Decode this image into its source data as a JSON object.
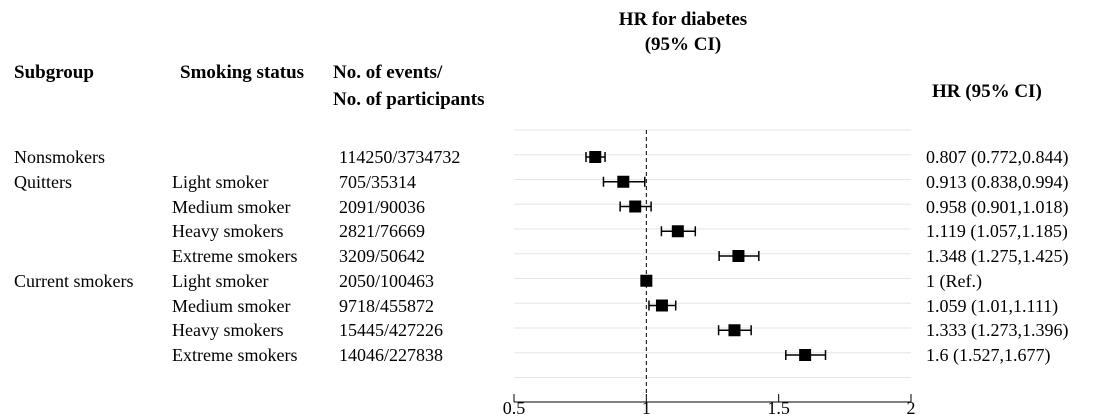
{
  "headers": {
    "subgroup": "Subgroup",
    "smoking_status": "Smoking status",
    "events_line1": "No. of events/",
    "events_line2": "No. of participants",
    "plot_title_line1": "HR for  diabetes",
    "plot_title_line2": "(95% CI)",
    "hr_ci": "HR (95% CI)"
  },
  "rows": [
    {
      "subgroup": "Nonsmokers",
      "status": "",
      "events": "114250/3734732",
      "hr_text": "0.807 (0.772,0.844)"
    },
    {
      "subgroup": "Quitters",
      "status": "Light smoker",
      "events": "705/35314",
      "hr_text": "0.913 (0.838,0.994)"
    },
    {
      "subgroup": "",
      "status": "Medium smoker",
      "events": "2091/90036",
      "hr_text": "0.958 (0.901,1.018)"
    },
    {
      "subgroup": "",
      "status": "Heavy smokers",
      "events": "2821/76669",
      "hr_text": "1.119 (1.057,1.185)"
    },
    {
      "subgroup": "",
      "status": "Extreme smokers",
      "events": "3209/50642",
      "hr_text": "1.348 (1.275,1.425)"
    },
    {
      "subgroup": "Current smokers",
      "status": "Light smoker",
      "events": "2050/100463",
      "hr_text": "1 (Ref.)"
    },
    {
      "subgroup": "",
      "status": "Medium smoker",
      "events": "9718/455872",
      "hr_text": "1.059 (1.01,1.111)"
    },
    {
      "subgroup": "",
      "status": "Heavy smokers",
      "events": "15445/427226",
      "hr_text": "1.333 (1.273,1.396)"
    },
    {
      "subgroup": "",
      "status": "Extreme smokers",
      "events": "14046/227838",
      "hr_text": "1.6 (1.527,1.677)"
    }
  ],
  "chart_data": {
    "type": "forest",
    "title": "HR for  diabetes (95% CI)",
    "xlim": [
      0.5,
      2
    ],
    "xticks": [
      "0.5",
      "1",
      "1.5",
      "2"
    ],
    "reference_line": 1,
    "reference_line_style": "dashed",
    "grid": "horizontal",
    "points": [
      {
        "hr": 0.807,
        "lower": 0.772,
        "upper": 0.844
      },
      {
        "hr": 0.913,
        "lower": 0.838,
        "upper": 0.994
      },
      {
        "hr": 0.958,
        "lower": 0.901,
        "upper": 1.018
      },
      {
        "hr": 1.119,
        "lower": 1.057,
        "upper": 1.185
      },
      {
        "hr": 1.348,
        "lower": 1.275,
        "upper": 1.425
      },
      {
        "hr": 1,
        "lower": 1,
        "upper": 1
      },
      {
        "hr": 1.059,
        "lower": 1.01,
        "upper": 1.111
      },
      {
        "hr": 1.333,
        "lower": 1.273,
        "upper": 1.396
      },
      {
        "hr": 1.6,
        "lower": 1.527,
        "upper": 1.677
      }
    ],
    "marker_color": "#000000",
    "grid_color": "#e6e6e6"
  }
}
